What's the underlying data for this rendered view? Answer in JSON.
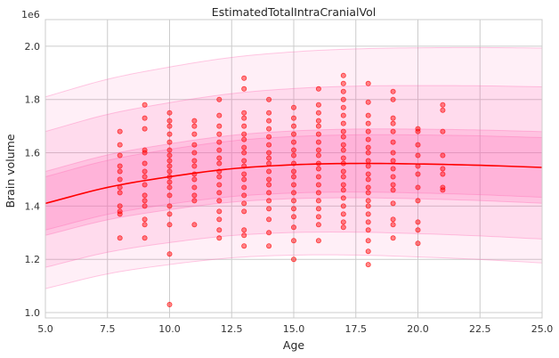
{
  "chart_data": {
    "type": "scatter",
    "title": "EstimatedTotalIntraCranialVol",
    "xlabel": "Age",
    "ylabel": "Brain volume",
    "y_offset_label": "1e6",
    "xlim": [
      5,
      25
    ],
    "ylim": [
      0.98,
      2.1
    ],
    "x_ticks": [
      5.0,
      7.5,
      10.0,
      12.5,
      15.0,
      17.5,
      20.0,
      22.5,
      25.0
    ],
    "x_tick_labels": [
      "5.0",
      "7.5",
      "10.0",
      "12.5",
      "15.0",
      "17.5",
      "20.0",
      "22.5",
      "25.0"
    ],
    "y_ticks": [
      1.0,
      1.2,
      1.4,
      1.6,
      1.8,
      2.0
    ],
    "y_tick_labels": [
      "1.0",
      "1.2",
      "1.4",
      "1.6",
      "1.8",
      "2.0"
    ],
    "grid": true,
    "colors": {
      "points": "#ff0000",
      "median_line": "#ff0000",
      "bands": "#ff66b3"
    },
    "median_curve": {
      "x": [
        5,
        7.5,
        10,
        12.5,
        15,
        17.5,
        20,
        22.5,
        25
      ],
      "y": [
        1.41,
        1.47,
        1.51,
        1.54,
        1.555,
        1.56,
        1.558,
        1.553,
        1.545
      ]
    },
    "bands": [
      {
        "lower_offset": -0.32,
        "upper_offset": 0.4,
        "opacity": 0.1
      },
      {
        "lower_offset": -0.24,
        "upper_offset": 0.27,
        "opacity": 0.14
      },
      {
        "lower_offset": -0.12,
        "upper_offset": 0.12,
        "opacity": 0.2
      },
      {
        "lower_offset": -0.1,
        "upper_offset": 0.1,
        "opacity": 0.16
      }
    ],
    "points": [
      [
        8,
        1.68
      ],
      [
        8,
        1.63
      ],
      [
        8,
        1.59
      ],
      [
        8,
        1.55
      ],
      [
        8,
        1.53
      ],
      [
        8,
        1.5
      ],
      [
        8,
        1.47
      ],
      [
        8,
        1.45
      ],
      [
        8,
        1.4
      ],
      [
        8,
        1.38
      ],
      [
        8,
        1.37
      ],
      [
        8,
        1.28
      ],
      [
        9,
        1.78
      ],
      [
        9,
        1.73
      ],
      [
        9,
        1.69
      ],
      [
        9,
        1.61
      ],
      [
        9,
        1.6
      ],
      [
        9,
        1.56
      ],
      [
        9,
        1.53
      ],
      [
        9,
        1.51
      ],
      [
        9,
        1.48
      ],
      [
        9,
        1.44
      ],
      [
        9,
        1.42
      ],
      [
        9,
        1.4
      ],
      [
        9,
        1.35
      ],
      [
        9,
        1.33
      ],
      [
        9,
        1.28
      ],
      [
        10,
        1.75
      ],
      [
        10,
        1.72
      ],
      [
        10,
        1.7
      ],
      [
        10,
        1.67
      ],
      [
        10,
        1.64
      ],
      [
        10,
        1.61
      ],
      [
        10,
        1.59
      ],
      [
        10,
        1.57
      ],
      [
        10,
        1.55
      ],
      [
        10,
        1.53
      ],
      [
        10,
        1.51
      ],
      [
        10,
        1.49
      ],
      [
        10,
        1.47
      ],
      [
        10,
        1.44
      ],
      [
        10,
        1.4
      ],
      [
        10,
        1.37
      ],
      [
        10,
        1.33
      ],
      [
        10,
        1.22
      ],
      [
        10,
        1.03
      ],
      [
        11,
        1.72
      ],
      [
        11,
        1.7
      ],
      [
        11,
        1.67
      ],
      [
        11,
        1.63
      ],
      [
        11,
        1.6
      ],
      [
        11,
        1.57
      ],
      [
        11,
        1.55
      ],
      [
        11,
        1.52
      ],
      [
        11,
        1.5
      ],
      [
        11,
        1.47
      ],
      [
        11,
        1.44
      ],
      [
        11,
        1.42
      ],
      [
        11,
        1.33
      ],
      [
        12,
        1.8
      ],
      [
        12,
        1.74
      ],
      [
        12,
        1.7
      ],
      [
        12,
        1.67
      ],
      [
        12,
        1.64
      ],
      [
        12,
        1.61
      ],
      [
        12,
        1.58
      ],
      [
        12,
        1.56
      ],
      [
        12,
        1.53
      ],
      [
        12,
        1.51
      ],
      [
        12,
        1.48
      ],
      [
        12,
        1.45
      ],
      [
        12,
        1.42
      ],
      [
        12,
        1.38
      ],
      [
        12,
        1.35
      ],
      [
        12,
        1.31
      ],
      [
        12,
        1.28
      ],
      [
        13,
        1.88
      ],
      [
        13,
        1.84
      ],
      [
        13,
        1.75
      ],
      [
        13,
        1.73
      ],
      [
        13,
        1.7
      ],
      [
        13,
        1.67
      ],
      [
        13,
        1.65
      ],
      [
        13,
        1.62
      ],
      [
        13,
        1.6
      ],
      [
        13,
        1.57
      ],
      [
        13,
        1.55
      ],
      [
        13,
        1.52
      ],
      [
        13,
        1.5
      ],
      [
        13,
        1.47
      ],
      [
        13,
        1.44
      ],
      [
        13,
        1.41
      ],
      [
        13,
        1.38
      ],
      [
        13,
        1.31
      ],
      [
        13,
        1.29
      ],
      [
        13,
        1.25
      ],
      [
        14,
        1.8
      ],
      [
        14,
        1.75
      ],
      [
        14,
        1.72
      ],
      [
        14,
        1.69
      ],
      [
        14,
        1.66
      ],
      [
        14,
        1.63
      ],
      [
        14,
        1.6
      ],
      [
        14,
        1.58
      ],
      [
        14,
        1.56
      ],
      [
        14,
        1.53
      ],
      [
        14,
        1.5
      ],
      [
        14,
        1.48
      ],
      [
        14,
        1.45
      ],
      [
        14,
        1.42
      ],
      [
        14,
        1.39
      ],
      [
        14,
        1.35
      ],
      [
        14,
        1.3
      ],
      [
        14,
        1.25
      ],
      [
        15,
        1.77
      ],
      [
        15,
        1.73
      ],
      [
        15,
        1.7
      ],
      [
        15,
        1.67
      ],
      [
        15,
        1.64
      ],
      [
        15,
        1.61
      ],
      [
        15,
        1.59
      ],
      [
        15,
        1.56
      ],
      [
        15,
        1.53
      ],
      [
        15,
        1.51
      ],
      [
        15,
        1.48
      ],
      [
        15,
        1.45
      ],
      [
        15,
        1.42
      ],
      [
        15,
        1.39
      ],
      [
        15,
        1.36
      ],
      [
        15,
        1.32
      ],
      [
        15,
        1.27
      ],
      [
        15,
        1.2
      ],
      [
        16,
        1.84
      ],
      [
        16,
        1.78
      ],
      [
        16,
        1.75
      ],
      [
        16,
        1.72
      ],
      [
        16,
        1.7
      ],
      [
        16,
        1.67
      ],
      [
        16,
        1.64
      ],
      [
        16,
        1.61
      ],
      [
        16,
        1.59
      ],
      [
        16,
        1.56
      ],
      [
        16,
        1.54
      ],
      [
        16,
        1.51
      ],
      [
        16,
        1.48
      ],
      [
        16,
        1.45
      ],
      [
        16,
        1.42
      ],
      [
        16,
        1.39
      ],
      [
        16,
        1.36
      ],
      [
        16,
        1.33
      ],
      [
        16,
        1.27
      ],
      [
        17,
        1.89
      ],
      [
        17,
        1.86
      ],
      [
        17,
        1.83
      ],
      [
        17,
        1.8
      ],
      [
        17,
        1.77
      ],
      [
        17,
        1.74
      ],
      [
        17,
        1.71
      ],
      [
        17,
        1.68
      ],
      [
        17,
        1.66
      ],
      [
        17,
        1.63
      ],
      [
        17,
        1.61
      ],
      [
        17,
        1.58
      ],
      [
        17,
        1.56
      ],
      [
        17,
        1.53
      ],
      [
        17,
        1.51
      ],
      [
        17,
        1.48
      ],
      [
        17,
        1.46
      ],
      [
        17,
        1.43
      ],
      [
        17,
        1.4
      ],
      [
        17,
        1.37
      ],
      [
        17,
        1.34
      ],
      [
        17,
        1.32
      ],
      [
        18,
        1.86
      ],
      [
        18,
        1.79
      ],
      [
        18,
        1.74
      ],
      [
        18,
        1.71
      ],
      [
        18,
        1.68
      ],
      [
        18,
        1.65
      ],
      [
        18,
        1.62
      ],
      [
        18,
        1.6
      ],
      [
        18,
        1.57
      ],
      [
        18,
        1.55
      ],
      [
        18,
        1.52
      ],
      [
        18,
        1.5
      ],
      [
        18,
        1.47
      ],
      [
        18,
        1.45
      ],
      [
        18,
        1.42
      ],
      [
        18,
        1.4
      ],
      [
        18,
        1.37
      ],
      [
        18,
        1.34
      ],
      [
        18,
        1.31
      ],
      [
        18,
        1.27
      ],
      [
        18,
        1.23
      ],
      [
        18,
        1.18
      ],
      [
        19,
        1.83
      ],
      [
        19,
        1.8
      ],
      [
        19,
        1.73
      ],
      [
        19,
        1.71
      ],
      [
        19,
        1.68
      ],
      [
        19,
        1.64
      ],
      [
        19,
        1.6
      ],
      [
        19,
        1.57
      ],
      [
        19,
        1.54
      ],
      [
        19,
        1.51
      ],
      [
        19,
        1.48
      ],
      [
        19,
        1.46
      ],
      [
        19,
        1.41
      ],
      [
        19,
        1.35
      ],
      [
        19,
        1.33
      ],
      [
        19,
        1.28
      ],
      [
        20,
        1.69
      ],
      [
        20,
        1.68
      ],
      [
        20,
        1.63
      ],
      [
        20,
        1.59
      ],
      [
        20,
        1.55
      ],
      [
        20,
        1.52
      ],
      [
        20,
        1.47
      ],
      [
        20,
        1.42
      ],
      [
        20,
        1.34
      ],
      [
        20,
        1.31
      ],
      [
        20,
        1.26
      ],
      [
        21,
        1.78
      ],
      [
        21,
        1.76
      ],
      [
        21,
        1.68
      ],
      [
        21,
        1.59
      ],
      [
        21,
        1.54
      ],
      [
        21,
        1.52
      ],
      [
        21,
        1.47
      ],
      [
        21,
        1.46
      ]
    ]
  }
}
